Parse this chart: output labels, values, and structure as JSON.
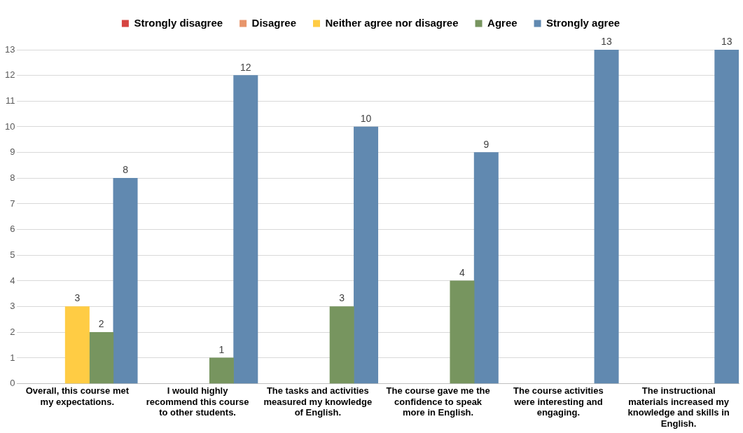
{
  "chart_data": {
    "type": "bar",
    "categories": [
      "Overall, this course met my expectations.",
      "I would highly recommend this course to other students.",
      "The tasks and activities measured my knowledge of English.",
      "The course gave me the confidence to speak more in English.",
      "The course activities were interesting and engaging.",
      "The instructional materials increased my knowledge and skills in English."
    ],
    "series": [
      {
        "name": "Strongly disagree",
        "color": "#d64541",
        "values": [
          null,
          null,
          null,
          null,
          null,
          null
        ]
      },
      {
        "name": "Disagree",
        "color": "#e8956b",
        "values": [
          null,
          null,
          null,
          null,
          null,
          null
        ]
      },
      {
        "name": "Neither agree nor disagree",
        "color": "#ffcc44",
        "values": [
          3,
          null,
          null,
          null,
          null,
          null
        ]
      },
      {
        "name": "Agree",
        "color": "#77955f",
        "values": [
          2,
          1,
          3,
          4,
          null,
          null
        ]
      },
      {
        "name": "Strongly agree",
        "color": "#6189b0",
        "values": [
          8,
          12,
          10,
          9,
          13,
          13
        ]
      }
    ],
    "ylim": [
      0,
      13
    ],
    "yticks": [
      0,
      1,
      2,
      3,
      4,
      5,
      6,
      7,
      8,
      9,
      10,
      11,
      12,
      13
    ],
    "grid": "y",
    "legend": "top",
    "data_labels": true
  }
}
